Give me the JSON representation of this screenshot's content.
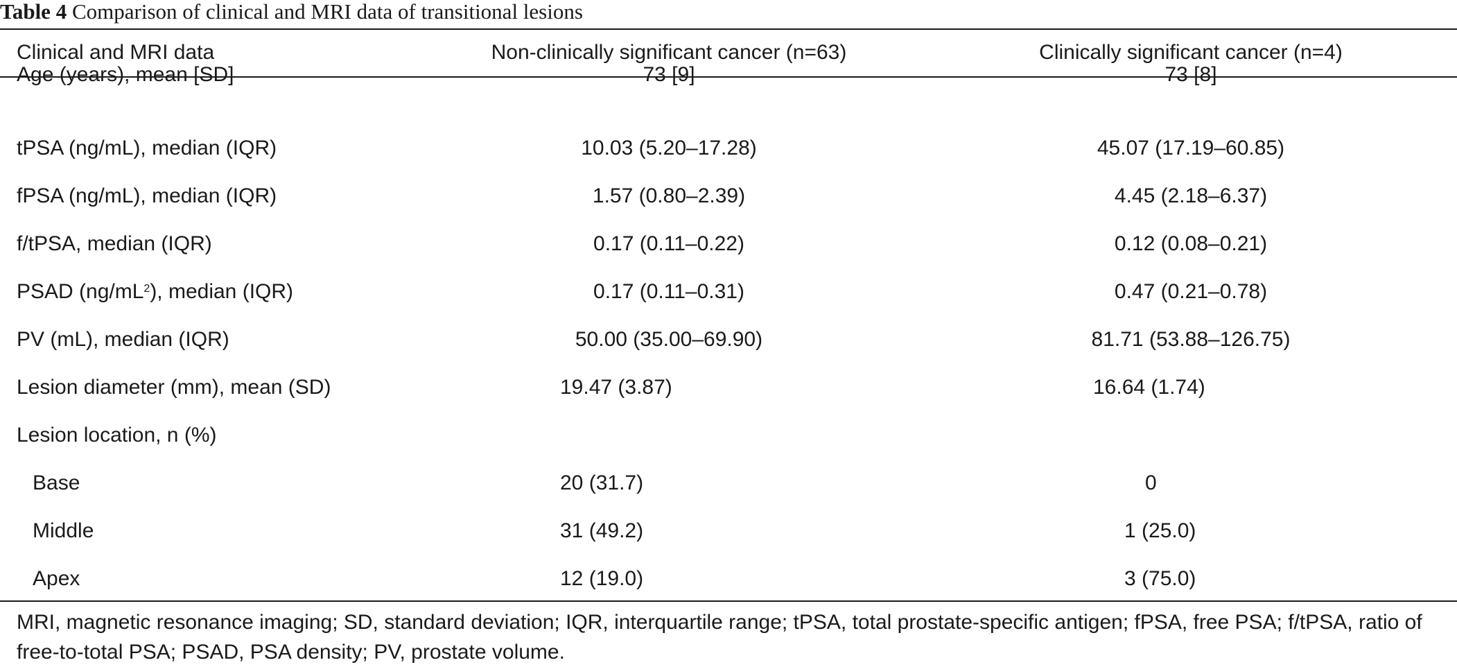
{
  "caption": {
    "label": "Table 4",
    "text": "Comparison of clinical and MRI data of transitional lesions"
  },
  "table": {
    "headers": [
      "Clinical and MRI data",
      "Non-clinically significant cancer (n=63)",
      "Clinically significant cancer (n=4)"
    ],
    "rows": [
      {
        "label": "Age (years), mean [SD]",
        "non_csc": "73 [9]",
        "csc": "73 [8]"
      },
      {
        "label": "tPSA (ng/mL), median (IQR)",
        "non_csc": "10.03 (5.20–17.28)",
        "csc": "45.07 (17.19–60.85)"
      },
      {
        "label": "fPSA (ng/mL), median (IQR)",
        "non_csc": "1.57 (0.80–2.39)",
        "csc": "4.45 (2.18–6.37)"
      },
      {
        "label": "f/tPSA, median (IQR)",
        "non_csc": "0.17 (0.11–0.22)",
        "csc": "0.12 (0.08–0.21)"
      },
      {
        "label_pre": "PSAD (ng/mL",
        "label_sup": "2",
        "label_post": "), median (IQR)",
        "non_csc": "0.17 (0.11–0.31)",
        "csc": "0.47 (0.21–0.78)"
      },
      {
        "label": "PV (mL), median (IQR)",
        "non_csc": "50.00 (35.00–69.90)",
        "csc": "81.71 (53.88–126.75)"
      },
      {
        "label": "Lesion diameter (mm), mean (SD)",
        "non_csc": "19.47 (3.87)",
        "csc": "16.64 (1.74)"
      },
      {
        "label": "Lesion location, n (%)",
        "non_csc": "",
        "csc": ""
      },
      {
        "label": "Base",
        "non_csc": "20 (31.7)",
        "csc": "0"
      },
      {
        "label": "Middle",
        "non_csc": "31 (49.2)",
        "csc": "1 (25.0)"
      },
      {
        "label": "Apex",
        "non_csc": "12 (19.0)",
        "csc": "3 (75.0)"
      }
    ]
  },
  "footnote": "MRI, magnetic resonance imaging; SD, standard deviation; IQR, interquartile range; tPSA, total prostate-specific antigen; fPSA, free PSA; f/tPSA, ratio of free-to-total PSA; PSAD, PSA density; PV, prostate volume."
}
